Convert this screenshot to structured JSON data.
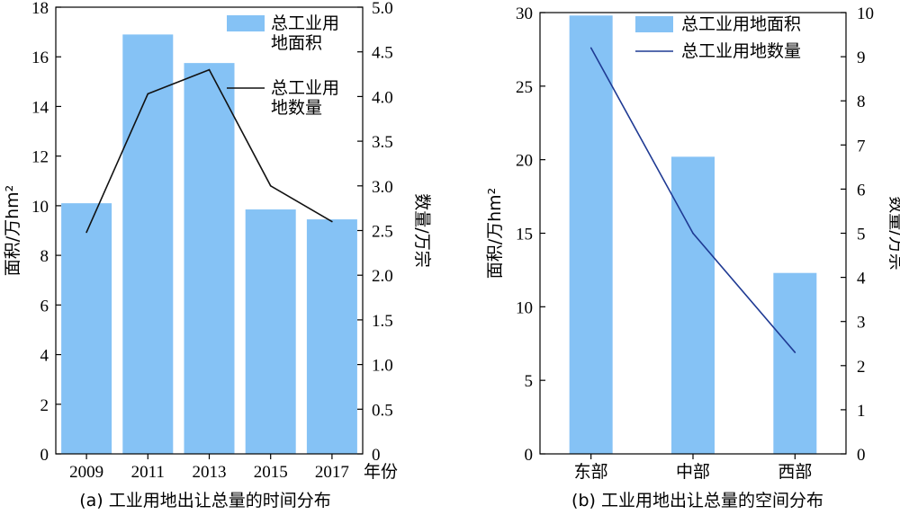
{
  "chart_data": [
    {
      "type": "bar",
      "caption": "(a) 工业用地出让总量的时间分布",
      "categories": [
        "2009",
        "2011",
        "2013",
        "2015",
        "2017"
      ],
      "xlabel": "年份",
      "ylabel": "面积/万hm²",
      "y2label": "数量/万宗",
      "ylim": [
        0,
        18
      ],
      "yticks": [
        "0",
        "2",
        "4",
        "6",
        "8",
        "10",
        "12",
        "14",
        "16",
        "18"
      ],
      "y2lim": [
        0,
        5.0
      ],
      "y2ticks": [
        "0",
        "0.5",
        "1.0",
        "1.5",
        "2.0",
        "2.5",
        "3.0",
        "3.5",
        "4.0",
        "4.5",
        "5.0"
      ],
      "series": [
        {
          "name": "总工业用地面积",
          "legend_lines": [
            "总工业用",
            "地面积"
          ],
          "type": "bar",
          "axis": "left",
          "values": [
            10.1,
            16.9,
            15.75,
            9.85,
            9.45
          ]
        },
        {
          "name": "总工业用地数量",
          "legend_lines": [
            "总工业用",
            "地数量"
          ],
          "type": "line",
          "axis": "right",
          "values": [
            2.48,
            4.03,
            4.3,
            3.0,
            2.6
          ]
        }
      ],
      "legend": "top-right",
      "colors": {
        "bar": "#85c2f5",
        "line": "#111111"
      }
    },
    {
      "type": "bar",
      "caption": "(b) 工业用地出让总量的空间分布",
      "categories": [
        "东部",
        "中部",
        "西部"
      ],
      "ylabel": "面积/万hm²",
      "y2label": "数量/万宗",
      "ylim": [
        0,
        30
      ],
      "yticks": [
        "0",
        "5",
        "10",
        "15",
        "20",
        "25",
        "30"
      ],
      "y2lim": [
        0,
        10
      ],
      "y2ticks": [
        "0",
        "1",
        "2",
        "3",
        "4",
        "5",
        "6",
        "7",
        "8",
        "9",
        "10"
      ],
      "series": [
        {
          "name": "总工业用地面积",
          "legend_lines": [
            "总工业用地面积"
          ],
          "type": "bar",
          "axis": "left",
          "values": [
            29.8,
            20.2,
            12.3
          ]
        },
        {
          "name": "总工业用地数量",
          "legend_lines": [
            "总工业用地数量"
          ],
          "type": "line",
          "axis": "right",
          "values": [
            9.2,
            5.0,
            2.3
          ]
        }
      ],
      "legend": "top-right",
      "colors": {
        "bar": "#85c2f5",
        "line": "#1f3a93"
      }
    }
  ]
}
